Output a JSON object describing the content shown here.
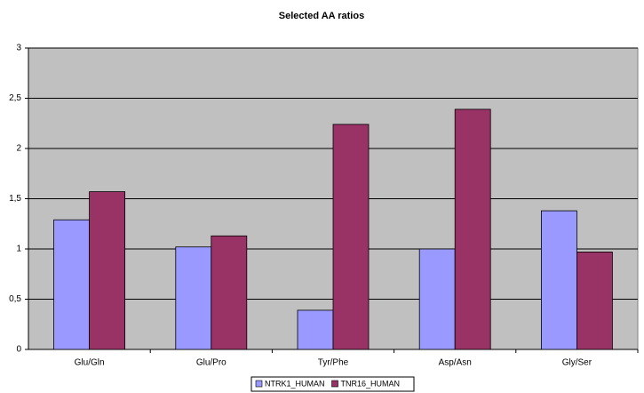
{
  "chart_data": {
    "type": "bar",
    "title": "Selected AA ratios",
    "categories": [
      "Glu/Gln",
      "Glu/Pro",
      "Tyr/Phe",
      "Asp/Asn",
      "Gly/Ser"
    ],
    "series": [
      {
        "name": "NTRK1_HUMAN",
        "color": "#9999ff",
        "values": [
          1.29,
          1.02,
          0.39,
          1.0,
          1.38
        ]
      },
      {
        "name": "TNR16_HUMAN",
        "color": "#993366",
        "values": [
          1.57,
          1.13,
          2.24,
          2.39,
          0.97
        ]
      }
    ],
    "ylim": [
      0,
      3
    ],
    "yticks": [
      0,
      {
        "value": 0.5,
        "label": "0,5"
      },
      1,
      {
        "value": 1.5,
        "label": "1,5"
      },
      2,
      {
        "value": 2.5,
        "label": "2,5"
      },
      3
    ],
    "grid": true,
    "legend": "bottom"
  }
}
